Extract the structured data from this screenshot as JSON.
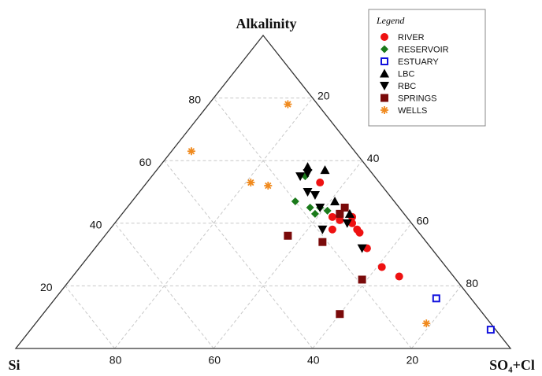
{
  "chart_data": {
    "type": "ternary",
    "axes": {
      "top": "Alkalinity",
      "left": "Si",
      "right": "SO₄+Cl"
    },
    "alkalinity_ticks": [
      20,
      40,
      60,
      80
    ],
    "si_ticks": [
      20,
      40,
      60,
      80
    ],
    "so4_cl_ticks": [
      20,
      40,
      60,
      80
    ],
    "grid": true,
    "legend_title": "Legend",
    "legend_position": "upper right",
    "series": [
      {
        "name": "RIVER",
        "color": "#ee1111",
        "marker": "circle",
        "alkalinity": [
          53,
          42,
          41,
          42,
          40,
          38,
          37,
          32,
          26,
          23,
          38
        ],
        "so4_cl": [
          35,
          43,
          45,
          47,
          48,
          50,
          51,
          55,
          61,
          66,
          45
        ]
      },
      {
        "name": "RESERVOIR",
        "color": "#1a7a1a",
        "marker": "diamond",
        "alkalinity": [
          55,
          47,
          45,
          45,
          44,
          43
        ],
        "so4_cl": [
          31,
          33,
          37,
          39,
          41,
          39
        ]
      },
      {
        "name": "ESTUARY",
        "color": "#1111dd",
        "marker": "open-square",
        "alkalinity": [
          16,
          6
        ],
        "so4_cl": [
          77,
          93
        ]
      },
      {
        "name": "LBC",
        "color": "#000000",
        "marker": "triangle-up",
        "alkalinity": [
          58,
          57,
          47,
          43
        ],
        "so4_cl": [
          30,
          34,
          41,
          46
        ]
      },
      {
        "name": "RBC",
        "color": "#000000",
        "marker": "triangle-down",
        "alkalinity": [
          55,
          56,
          50,
          49,
          45,
          38,
          40,
          32
        ],
        "so4_cl": [
          30,
          31,
          34,
          36,
          39,
          43,
          47,
          54
        ]
      },
      {
        "name": "SPRINGS",
        "color": "#7a0a0a",
        "marker": "square",
        "alkalinity": [
          36,
          34,
          45,
          43,
          22,
          11
        ],
        "so4_cl": [
          37,
          45,
          44,
          44,
          59,
          60
        ]
      },
      {
        "name": "WELLS",
        "color": "#f08a1e",
        "marker": "asterisk",
        "alkalinity": [
          78,
          63,
          53,
          52,
          8
        ],
        "so4_cl": [
          16,
          4,
          21,
          25,
          79
        ]
      }
    ]
  }
}
